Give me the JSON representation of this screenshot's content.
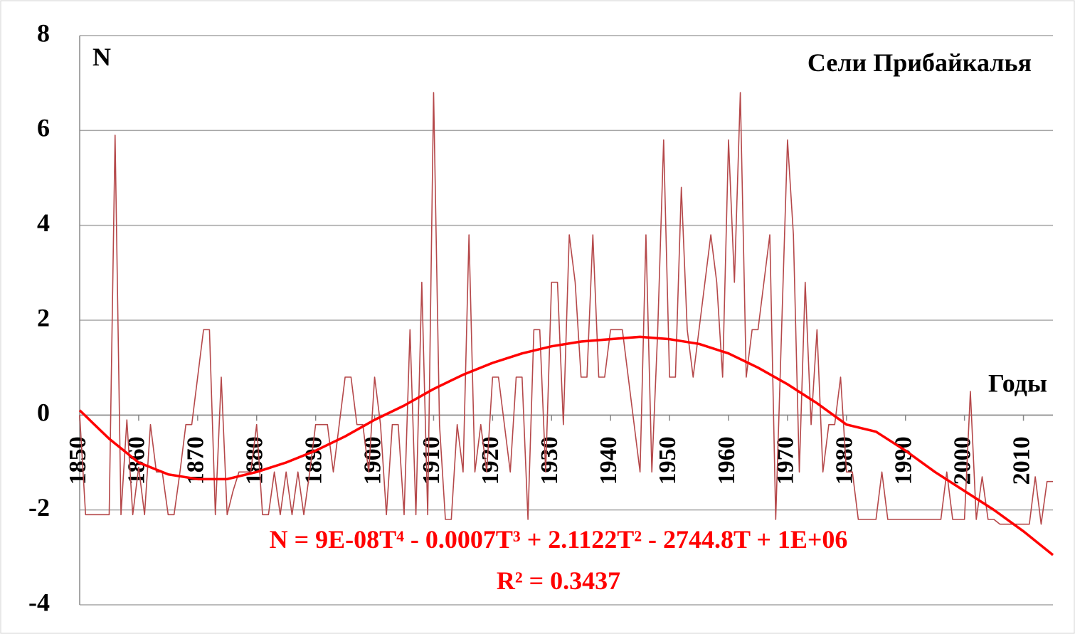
{
  "chart_data": {
    "type": "line",
    "title": "Сели Прибайкалья",
    "y_label": "N",
    "x_label": "Годы",
    "equation": "N = 9E-08T⁴ - 0.0007T³ + 2.1122T² - 2744.8T + 1E+06",
    "r_squared": "R² = 0.3437",
    "xlim": [
      1850,
      2015
    ],
    "xticks": [
      1850,
      1860,
      1870,
      1880,
      1890,
      1900,
      1910,
      1920,
      1930,
      1940,
      1950,
      1960,
      1970,
      1980,
      1990,
      2000,
      2010
    ],
    "ylim": [
      -4,
      8
    ],
    "yticks": [
      8,
      6,
      4,
      2,
      0,
      -2,
      -4
    ],
    "grid": true,
    "series": [
      {
        "color": "#b5484a",
        "x": [
          1850,
          1851,
          1852,
          1853,
          1854,
          1855,
          1856,
          1857,
          1858,
          1859,
          1860,
          1861,
          1862,
          1863,
          1864,
          1865,
          1866,
          1867,
          1868,
          1869,
          1870,
          1871,
          1872,
          1873,
          1874,
          1875,
          1876,
          1877,
          1878,
          1879,
          1880,
          1881,
          1882,
          1883,
          1884,
          1885,
          1886,
          1887,
          1888,
          1889,
          1890,
          1891,
          1892,
          1893,
          1894,
          1895,
          1896,
          1897,
          1898,
          1899,
          1900,
          1901,
          1902,
          1903,
          1904,
          1905,
          1906,
          1907,
          1908,
          1909,
          1910,
          1911,
          1912,
          1913,
          1914,
          1915,
          1916,
          1917,
          1918,
          1919,
          1920,
          1921,
          1922,
          1923,
          1924,
          1925,
          1926,
          1927,
          1928,
          1929,
          1930,
          1931,
          1932,
          1933,
          1934,
          1935,
          1936,
          1937,
          1938,
          1939,
          1940,
          1941,
          1942,
          1943,
          1944,
          1945,
          1946,
          1947,
          1948,
          1949,
          1950,
          1951,
          1952,
          1953,
          1954,
          1955,
          1956,
          1957,
          1958,
          1959,
          1960,
          1961,
          1962,
          1963,
          1964,
          1965,
          1966,
          1967,
          1968,
          1969,
          1970,
          1971,
          1972,
          1973,
          1974,
          1975,
          1976,
          1977,
          1978,
          1979,
          1980,
          1981,
          1982,
          1983,
          1984,
          1985,
          1986,
          1987,
          1988,
          1989,
          1990,
          1991,
          1992,
          1993,
          1994,
          1995,
          1996,
          1997,
          1998,
          1999,
          2000,
          2001,
          2002,
          2003,
          2004,
          2005,
          2006,
          2007,
          2008,
          2009,
          2010,
          2011,
          2012,
          2013,
          2014,
          2015
        ],
        "values": [
          0,
          -2.1,
          -2.1,
          -2.1,
          -2.1,
          -2.1,
          5.9,
          -2.1,
          -0.1,
          -2.1,
          -1.1,
          -2.1,
          -0.2,
          -1.2,
          -1.2,
          -2.1,
          -2.1,
          -1.2,
          -0.2,
          -0.2,
          0.8,
          1.8,
          1.8,
          -2.1,
          0.8,
          -2.1,
          -1.6,
          -1.2,
          -1.2,
          -1.2,
          -0.2,
          -2.1,
          -2.1,
          -1.2,
          -2.1,
          -1.2,
          -2.1,
          -1.2,
          -2.1,
          -1.2,
          -0.2,
          -0.2,
          -0.2,
          -1.2,
          -0.2,
          0.8,
          0.8,
          -0.2,
          -0.2,
          -1.2,
          0.8,
          -0.2,
          -2.1,
          -0.2,
          -0.2,
          -2.1,
          1.8,
          -2.1,
          2.8,
          -2.1,
          6.8,
          -0.2,
          -2.2,
          -2.2,
          -0.2,
          -1.2,
          3.8,
          -1.2,
          -0.2,
          -1.2,
          0.8,
          0.8,
          -0.2,
          -1.2,
          0.8,
          0.8,
          -2.2,
          1.8,
          1.8,
          -1.2,
          2.8,
          2.8,
          -0.2,
          3.8,
          2.8,
          0.8,
          0.8,
          3.8,
          0.8,
          0.8,
          1.8,
          1.8,
          1.8,
          0.8,
          -0.2,
          -1.2,
          3.8,
          -1.2,
          1.8,
          5.8,
          0.8,
          0.8,
          4.8,
          1.8,
          0.8,
          1.8,
          2.8,
          3.8,
          2.8,
          0.8,
          5.8,
          2.8,
          6.8,
          0.8,
          1.8,
          1.8,
          2.8,
          3.8,
          -2.2,
          1.8,
          5.8,
          3.8,
          -1.2,
          2.8,
          -0.2,
          1.8,
          -1.2,
          -0.2,
          -0.2,
          0.8,
          -1.2,
          -1.2,
          -2.2,
          -2.2,
          -2.2,
          -2.2,
          -1.2,
          -2.2,
          -2.2,
          -2.2,
          -2.2,
          -2.2,
          -2.2,
          -2.2,
          -2.2,
          -2.2,
          -2.2,
          -1.2,
          -2.2,
          -2.2,
          -2.2,
          0.5,
          -2.2,
          -1.3,
          -2.2,
          -2.2,
          -2.3,
          -2.3,
          -2.3,
          -2.3,
          -2.3,
          -2.3,
          -1.3,
          -2.3,
          -1.4,
          -1.4
        ]
      },
      {
        "color": "#ff0000",
        "x": [
          1850,
          1855,
          1860,
          1865,
          1870,
          1875,
          1880,
          1885,
          1890,
          1895,
          1900,
          1905,
          1910,
          1915,
          1920,
          1925,
          1930,
          1935,
          1940,
          1945,
          1950,
          1955,
          1960,
          1965,
          1970,
          1975,
          1980,
          1985,
          1990,
          1995,
          2000,
          2005,
          2010,
          2015
        ],
        "values": [
          0.1,
          -0.5,
          -1.0,
          -1.25,
          -1.35,
          -1.35,
          -1.2,
          -1.0,
          -0.75,
          -0.45,
          -0.1,
          0.2,
          0.55,
          0.85,
          1.1,
          1.3,
          1.45,
          1.55,
          1.6,
          1.65,
          1.6,
          1.5,
          1.3,
          1.0,
          0.65,
          0.25,
          -0.2,
          -0.35,
          -0.75,
          -1.2,
          -1.6,
          -2.0,
          -2.45,
          -2.95
        ]
      }
    ]
  }
}
